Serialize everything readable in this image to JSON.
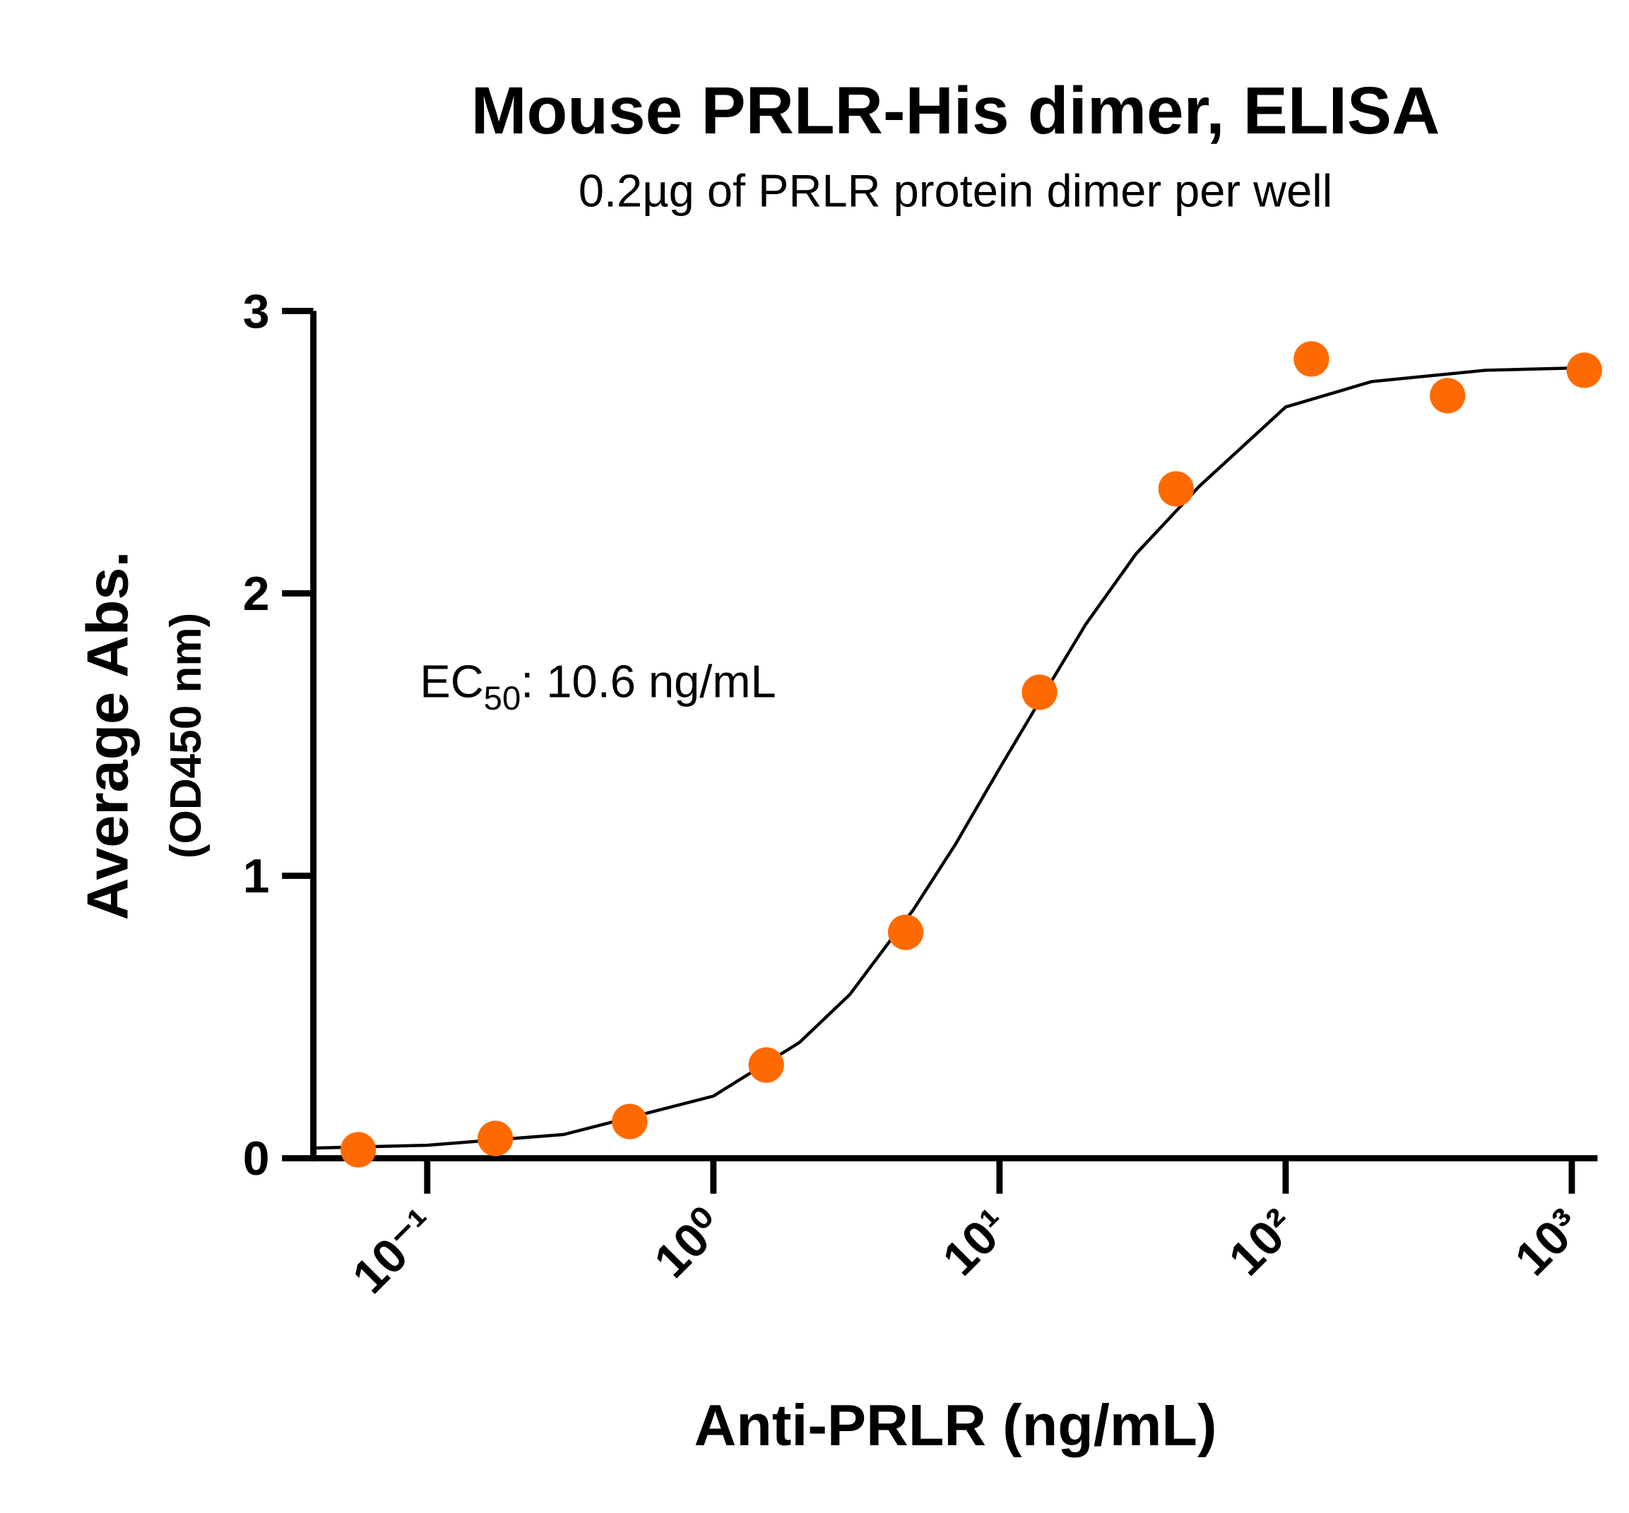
{
  "chart_data": {
    "type": "scatter",
    "title": "Mouse PRLR-His dimer, ELISA",
    "subtitle": "0.2µg of PRLR protein dimer per well",
    "x_label": "Anti-PRLR  (ng/mL)",
    "y_label": [
      "Average Abs.",
      "(OD450 nm)"
    ],
    "annotation": {
      "prefix": "EC",
      "subscript": "50",
      "text": ": 10.6 ng/mL"
    },
    "xscale": "log",
    "xlim": [
      0.04,
      1230
    ],
    "xticks": [
      {
        "value": 0.1,
        "label": "10⁻¹"
      },
      {
        "value": 1,
        "label": "10⁰"
      },
      {
        "value": 10,
        "label": "10¹"
      },
      {
        "value": 100,
        "label": "10²"
      },
      {
        "value": 1000,
        "label": "10³"
      }
    ],
    "ylim": [
      0,
      3
    ],
    "yticks": [
      0,
      1,
      2,
      3
    ],
    "series": [
      {
        "color": "#ff6a00",
        "x": [
          0.0574,
          0.173,
          0.51,
          1.53,
          4.7,
          13.8,
          41.4,
          123,
          368,
          1106
        ],
        "values": [
          0.03,
          0.07,
          0.13,
          0.33,
          0.8,
          1.65,
          2.37,
          2.83,
          2.7,
          2.79
        ]
      },
      {
        "type": "line",
        "color": "#000000",
        "x": [
          0.04,
          0.1,
          0.3,
          1,
          2,
          3,
          5,
          7,
          10,
          15,
          20,
          30,
          50,
          100,
          200,
          500,
          1230
        ],
        "values": [
          0.036,
          0.046,
          0.084,
          0.22,
          0.41,
          0.58,
          0.88,
          1.11,
          1.38,
          1.68,
          1.89,
          2.14,
          2.38,
          2.66,
          2.75,
          2.79,
          2.8
        ]
      }
    ]
  }
}
